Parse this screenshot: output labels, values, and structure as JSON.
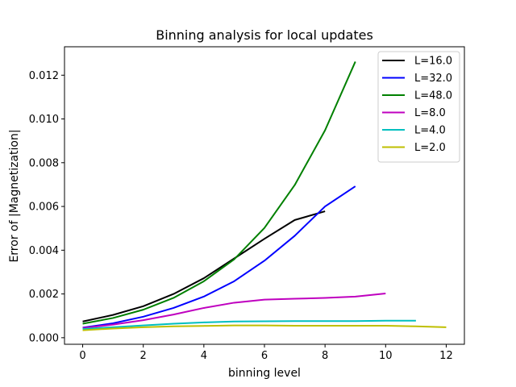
{
  "chart_data": {
    "type": "line",
    "title": "Binning analysis for local updates",
    "xlabel": "binning level",
    "ylabel": "Error of |Magnetization|",
    "xlim": [
      -0.6,
      12.6
    ],
    "ylim": [
      -0.0003,
      0.0133
    ],
    "xticks": [
      0,
      2,
      4,
      6,
      8,
      10,
      12
    ],
    "yticks": [
      0.0,
      0.002,
      0.004,
      0.006,
      0.008,
      0.01,
      0.012
    ],
    "ytick_labels": [
      "0.000",
      "0.002",
      "0.004",
      "0.006",
      "0.008",
      "0.010",
      "0.012"
    ],
    "grid": false,
    "legend_position": "top-right",
    "series": [
      {
        "name": "L=16.0",
        "color": "#000000",
        "x": [
          0,
          1,
          2,
          3,
          4,
          5,
          6,
          7,
          8
        ],
        "y": [
          0.00074,
          0.00104,
          0.00144,
          0.002,
          0.00272,
          0.00362,
          0.00452,
          0.00538,
          0.00578
        ]
      },
      {
        "name": "L=32.0",
        "color": "#0000ff",
        "x": [
          0,
          1,
          2,
          3,
          4,
          5,
          6,
          7,
          8,
          9
        ],
        "y": [
          0.00046,
          0.00066,
          0.00096,
          0.00136,
          0.00188,
          0.00258,
          0.00352,
          0.00466,
          0.006,
          0.00692
        ]
      },
      {
        "name": "L=48.0",
        "color": "#008000",
        "x": [
          0,
          1,
          2,
          3,
          4,
          5,
          6,
          7,
          8,
          9
        ],
        "y": [
          0.00064,
          0.0009,
          0.00128,
          0.00182,
          0.00258,
          0.00358,
          0.00502,
          0.00698,
          0.00948,
          0.01262
        ]
      },
      {
        "name": "L=8.0",
        "color": "#bf00bf",
        "x": [
          0,
          1,
          2,
          3,
          4,
          5,
          6,
          7,
          8,
          9,
          10
        ],
        "y": [
          0.00044,
          0.0006,
          0.0008,
          0.00106,
          0.00136,
          0.0016,
          0.00174,
          0.00178,
          0.00182,
          0.00188,
          0.00202
        ]
      },
      {
        "name": "L=4.0",
        "color": "#00bfbf",
        "x": [
          0,
          1,
          2,
          3,
          4,
          5,
          6,
          7,
          8,
          9,
          10,
          11
        ],
        "y": [
          0.0004,
          0.00048,
          0.00056,
          0.00064,
          0.0007,
          0.00074,
          0.00075,
          0.00076,
          0.00076,
          0.00076,
          0.00078,
          0.00078
        ]
      },
      {
        "name": "L=2.0",
        "color": "#bfbf00",
        "x": [
          0,
          1,
          2,
          3,
          4,
          5,
          6,
          7,
          8,
          9,
          10,
          11,
          12
        ],
        "y": [
          0.00034,
          0.00042,
          0.00048,
          0.00052,
          0.00054,
          0.00056,
          0.00056,
          0.00055,
          0.00055,
          0.00055,
          0.00055,
          0.00052,
          0.00048
        ]
      }
    ]
  }
}
